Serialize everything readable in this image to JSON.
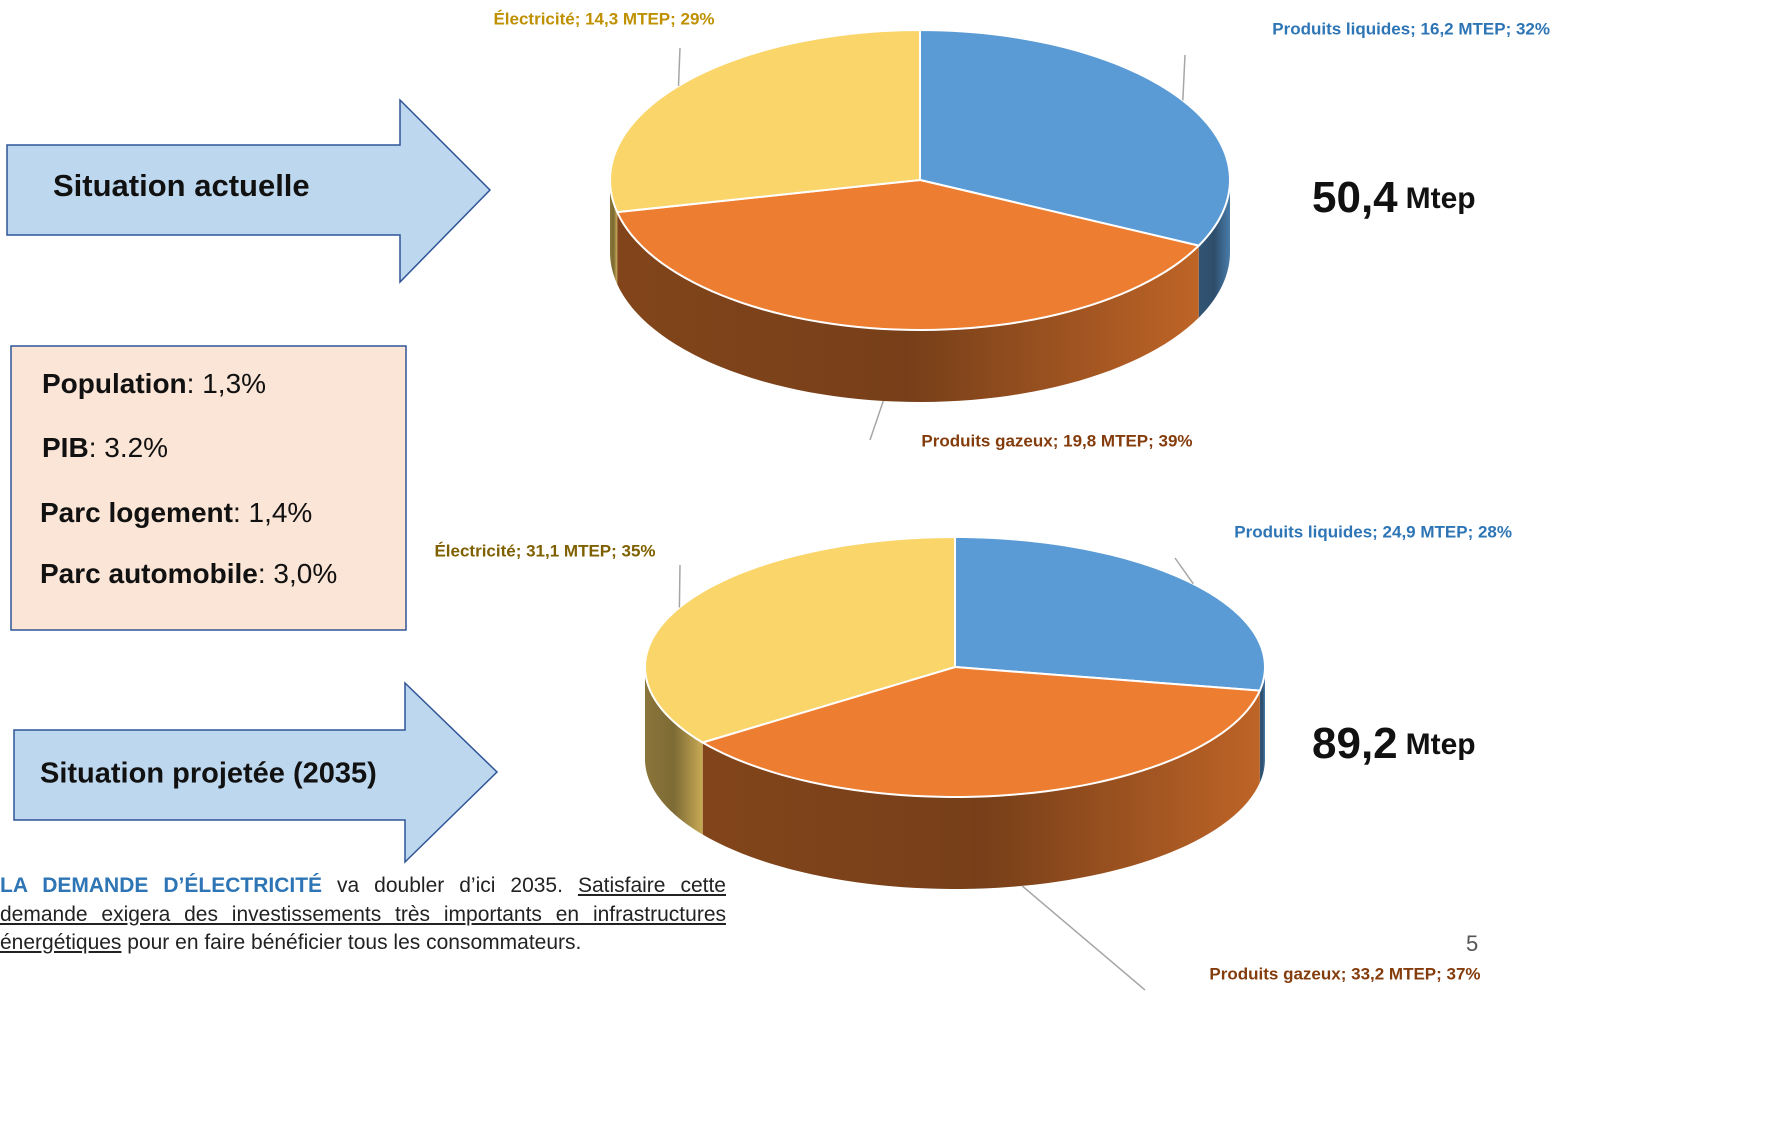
{
  "chart_data": [
    {
      "type": "pie",
      "categories": [
        "Produits liquides",
        "Produits gazeux",
        "Électricité"
      ],
      "values": [
        16.2,
        19.8,
        14.3
      ],
      "value_labels": [
        "Produits liquides; 16,2 MTEP; 32%",
        "Produits gazeux; 19,8 MTEP; 39%",
        "Électricité; 14,3 MTEP; 29%"
      ],
      "colors": [
        "#5b9bd5",
        "#ed7d31",
        "#fad56a"
      ],
      "label_colors": [
        "#2e75b6",
        "#843c0c",
        "#bf9000"
      ]
    },
    {
      "type": "pie",
      "categories": [
        "Produits liquides",
        "Produits gazeux",
        "Électricité"
      ],
      "values": [
        24.9,
        33.2,
        31.1
      ],
      "value_labels": [
        "Produits liquides; 24,9 MTEP; 28%",
        "Produits gazeux; 33,2 MTEP; 37%",
        "Électricité; 31,1 MTEP; 35%"
      ],
      "colors": [
        "#5b9bd5",
        "#ed7d31",
        "#fad56a"
      ],
      "label_colors": [
        "#2e75b6",
        "#843c0c",
        "#7f6000"
      ]
    }
  ],
  "slide": {
    "arrow_current": "Situation actuelle",
    "arrow_projected": "Situation projetée (2035)",
    "total_current": "50,4",
    "total_current_unit": "Mtep",
    "total_projected": "89,2",
    "total_projected_unit": "Mtep",
    "growth": [
      {
        "label": "Population",
        "value": ": 1,3%"
      },
      {
        "label": "PIB",
        "value": ": 3.2%"
      },
      {
        "label": "Parc logement",
        "value": ": 1,4%"
      },
      {
        "label": "Parc automobile",
        "value": ": 3,0%"
      }
    ],
    "note_lead": "LA DEMANDE D’ÉLECTRICITÉ",
    "note_text": " va doubler d’ici 2035. ",
    "note_underlined": "Satisfaire cette demande exigera des investissements très importants en infrastructures énergétiques",
    "note_end": " pour en faire bénéficier tous les consommateurs.",
    "page_number": "5"
  }
}
